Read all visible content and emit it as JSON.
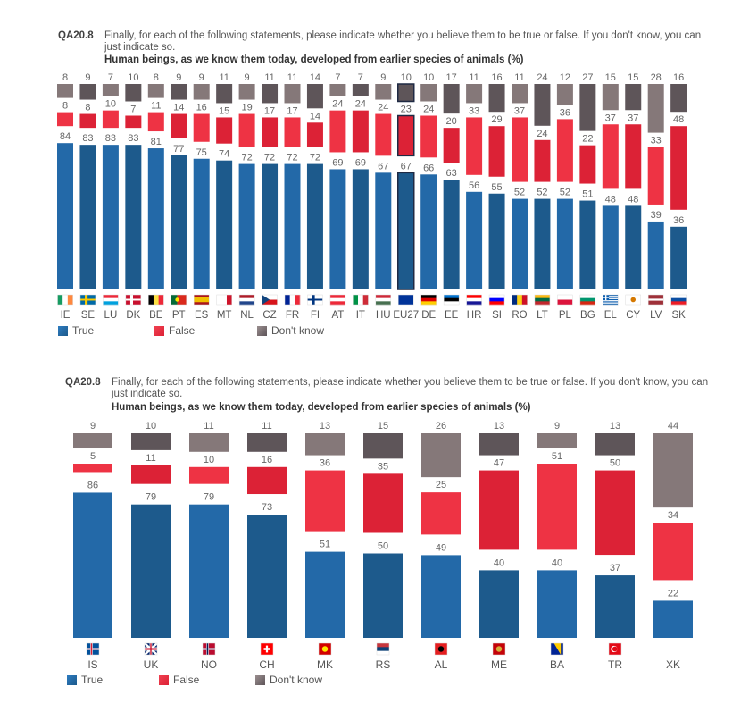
{
  "colors": {
    "true_light": "#2369a8",
    "true_dark": "#1d5a8c",
    "false_light": "#ee3344",
    "false_dark": "#dc2236",
    "dk_light": "#857879",
    "dk_dark": "#5e5559",
    "highlight_border": "#1f2a44",
    "label": "#666666"
  },
  "chart_data": [
    {
      "type": "bar",
      "stacked": true,
      "question_code": "QA20.8",
      "question_text": "Finally, for each of the following statements, please indicate whether you believe them to be true or false. If you don't know, you can just indicate so.",
      "title": "Human beings, as we know them today, developed from earlier species of animals (%)",
      "xlabel": "",
      "ylabel": "",
      "ylim": [
        0,
        100
      ],
      "grid": false,
      "legend_position": "bottom-left",
      "highlight_category": "EU27",
      "categories": [
        "IE",
        "SE",
        "LU",
        "DK",
        "BE",
        "PT",
        "ES",
        "MT",
        "NL",
        "CZ",
        "FR",
        "FI",
        "AT",
        "IT",
        "HU",
        "EU27",
        "DE",
        "EE",
        "HR",
        "SI",
        "RO",
        "LT",
        "PL",
        "BG",
        "EL",
        "CY",
        "LV",
        "SK"
      ],
      "series": [
        {
          "name": "True",
          "values": [
            84,
            83,
            83,
            83,
            81,
            77,
            75,
            74,
            72,
            72,
            72,
            72,
            69,
            69,
            67,
            67,
            66,
            63,
            56,
            55,
            52,
            52,
            52,
            51,
            48,
            48,
            39,
            36
          ]
        },
        {
          "name": "False",
          "values": [
            8,
            8,
            10,
            7,
            11,
            14,
            16,
            15,
            19,
            17,
            17,
            14,
            24,
            24,
            24,
            23,
            24,
            20,
            33,
            29,
            37,
            24,
            36,
            22,
            37,
            37,
            33,
            48
          ]
        },
        {
          "name": "Don't know",
          "values": [
            8,
            9,
            7,
            10,
            8,
            9,
            9,
            11,
            9,
            11,
            11,
            14,
            7,
            7,
            9,
            10,
            10,
            17,
            11,
            16,
            11,
            24,
            12,
            27,
            15,
            15,
            28,
            16
          ]
        }
      ],
      "legend": [
        "True",
        "False",
        "Don't know"
      ]
    },
    {
      "type": "bar",
      "stacked": true,
      "question_code": "QA20.8",
      "question_text": "Finally, for each of the following statements, please indicate whether you believe them to be true or false. If you don't know, you can just indicate so.",
      "title": "Human beings, as we know them today, developed from earlier species of animals (%)",
      "xlabel": "",
      "ylabel": "",
      "ylim": [
        0,
        100
      ],
      "grid": false,
      "legend_position": "bottom-left",
      "categories": [
        "IS",
        "UK",
        "NO",
        "CH",
        "MK",
        "RS",
        "AL",
        "ME",
        "BA",
        "TR",
        "XK"
      ],
      "series": [
        {
          "name": "True",
          "values": [
            86,
            79,
            79,
            73,
            51,
            50,
            49,
            40,
            40,
            37,
            22
          ]
        },
        {
          "name": "False",
          "values": [
            5,
            11,
            10,
            16,
            36,
            35,
            25,
            47,
            51,
            50,
            34
          ]
        },
        {
          "name": "Don't know",
          "values": [
            9,
            10,
            11,
            11,
            13,
            15,
            26,
            13,
            9,
            13,
            44
          ]
        }
      ],
      "legend": [
        "True",
        "False",
        "Don't know"
      ]
    }
  ],
  "flags": {
    "IE": "ireland-flag",
    "SE": "sweden-flag",
    "LU": "luxembourg-flag",
    "DK": "denmark-flag",
    "BE": "belgium-flag",
    "PT": "portugal-flag",
    "ES": "spain-flag",
    "MT": "malta-flag",
    "NL": "netherlands-flag",
    "CZ": "czechia-flag",
    "FR": "france-flag",
    "FI": "finland-flag",
    "AT": "austria-flag",
    "IT": "italy-flag",
    "HU": "hungary-flag",
    "EU27": "eu-flag",
    "DE": "germany-flag",
    "EE": "estonia-flag",
    "HR": "croatia-flag",
    "SI": "slovenia-flag",
    "RO": "romania-flag",
    "LT": "lithuania-flag",
    "PL": "poland-flag",
    "BG": "bulgaria-flag",
    "EL": "greece-flag",
    "CY": "cyprus-flag",
    "LV": "latvia-flag",
    "SK": "slovakia-flag",
    "IS": "iceland-flag",
    "UK": "united-kingdom-flag",
    "NO": "norway-flag",
    "CH": "switzerland-flag",
    "MK": "north-macedonia-flag",
    "RS": "serbia-flag",
    "AL": "albania-flag",
    "ME": "montenegro-flag",
    "BA": "bosnia-flag",
    "TR": "turkey-flag",
    "XK": ""
  }
}
